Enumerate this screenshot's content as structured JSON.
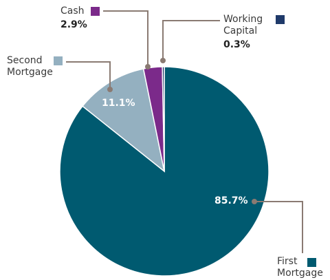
{
  "chart_data": {
    "type": "pie",
    "categories": [
      "First Mortgage",
      "Second Mortgage",
      "Cash",
      "Working Capital"
    ],
    "values": [
      85.7,
      11.1,
      2.9,
      0.3
    ],
    "value_labels": [
      "85.7%",
      "11.1%",
      "2.9%",
      "0.3%"
    ],
    "colors": [
      "#005a70",
      "#94b0c0",
      "#7b2a8a",
      "#1f3a6a"
    ]
  }
}
